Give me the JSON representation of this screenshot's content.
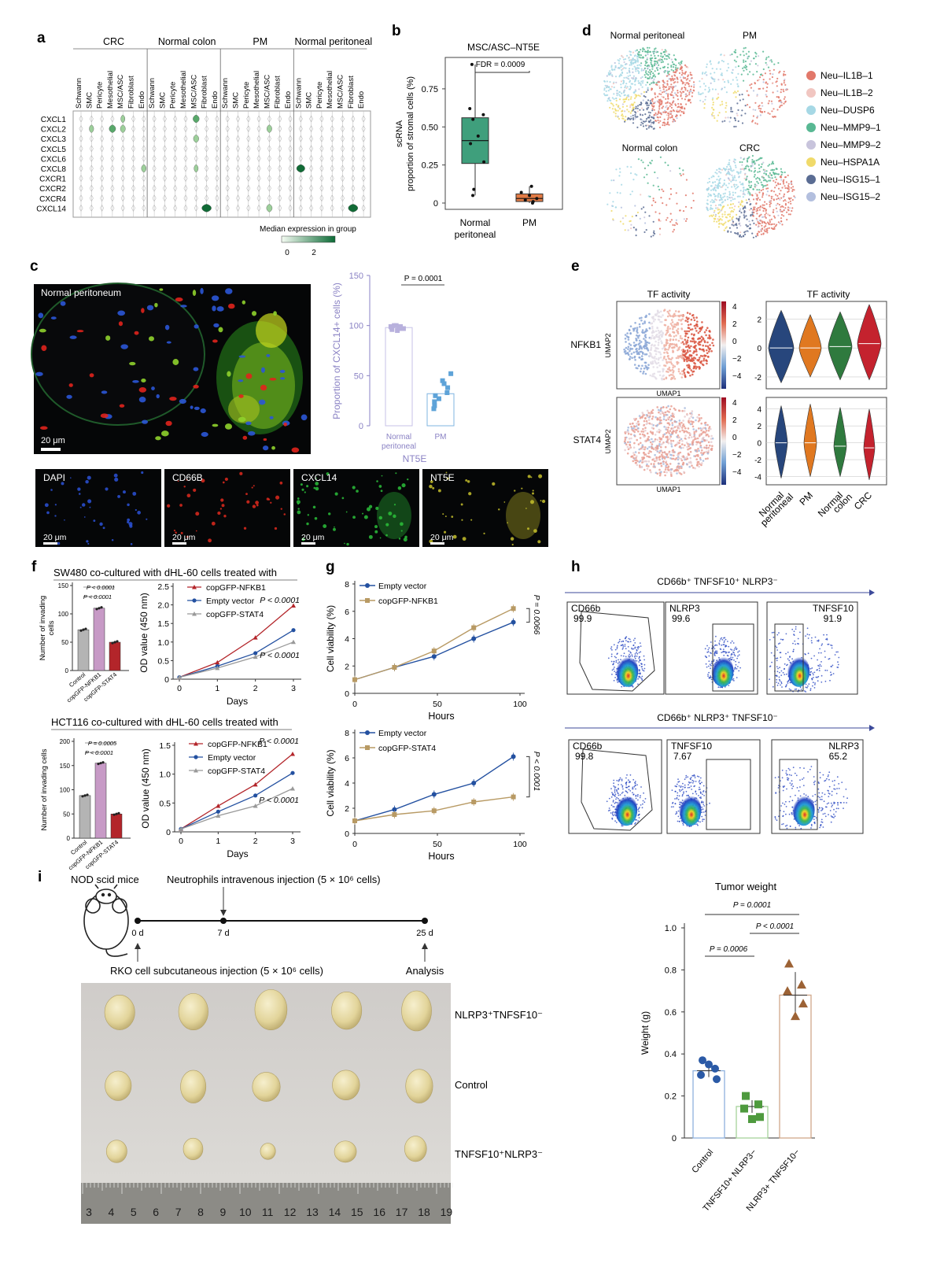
{
  "panels": {
    "a": "a",
    "b": "b",
    "c": "c",
    "d": "d",
    "e": "e",
    "f": "f",
    "g": "g",
    "h": "h",
    "i": "i"
  },
  "chart_data": [
    {
      "id": "a",
      "type": "violin-matrix",
      "groups": [
        "CRC",
        "Normal colon",
        "PM",
        "Normal peritoneal"
      ],
      "cell_types": [
        "Schwann",
        "SMC",
        "Pericyte",
        "Mesothelial",
        "MSC/ASC",
        "Fibroblast",
        "Endo"
      ],
      "genes": [
        "CXCL1",
        "CXCL2",
        "CXCL3",
        "CXCL5",
        "CXCL6",
        "CXCL8",
        "CXCR1",
        "CXCR2",
        "CXCR4",
        "CXCL14"
      ],
      "highlighted": [
        {
          "gene": "CXCL2",
          "group": 0,
          "cell": 3,
          "level": 1.4
        },
        {
          "gene": "CXCL2",
          "group": 0,
          "cell": 4,
          "level": 0.9
        },
        {
          "gene": "CXCL2",
          "group": 0,
          "cell": 1,
          "level": 0.7
        },
        {
          "gene": "CXCL1",
          "group": 0,
          "cell": 4,
          "level": 0.6
        },
        {
          "gene": "CXCL8",
          "group": 0,
          "cell": 6,
          "level": 0.8
        },
        {
          "gene": "CXCL1",
          "group": 1,
          "cell": 4,
          "level": 1.3
        },
        {
          "gene": "CXCL3",
          "group": 1,
          "cell": 4,
          "level": 1.0
        },
        {
          "gene": "CXCL8",
          "group": 1,
          "cell": 4,
          "level": 0.6
        },
        {
          "gene": "CXCL14",
          "group": 1,
          "cell": 5,
          "level": 2.4
        },
        {
          "gene": "CXCL2",
          "group": 2,
          "cell": 4,
          "level": 0.9
        },
        {
          "gene": "CXCL14",
          "group": 2,
          "cell": 4,
          "level": 1.1
        },
        {
          "gene": "CXCL8",
          "group": 3,
          "cell": 0,
          "level": 2.0
        },
        {
          "gene": "CXCL14",
          "group": 3,
          "cell": 5,
          "level": 2.4
        }
      ],
      "colorbar": {
        "label": "Median expression in group",
        "ticks": [
          "0",
          "2"
        ]
      }
    },
    {
      "id": "b",
      "type": "box",
      "title": "MSC/ASC–NT5E",
      "ylabel": "scRNA\nproportion of stromal cells (%)",
      "yticks": [
        "0",
        "0.25",
        "0.50",
        "0.75"
      ],
      "ylim": [
        0,
        0.92
      ],
      "categories": [
        "Normal\nperitoneal",
        "PM"
      ],
      "boxes": [
        {
          "q1": 0.26,
          "median": 0.41,
          "q3": 0.56,
          "whisker_low": 0.05,
          "whisker_high": 0.91,
          "points": [
            0.91,
            0.62,
            0.58,
            0.55,
            0.44,
            0.39,
            0.27,
            0.09,
            0.05
          ]
        },
        {
          "q1": 0.01,
          "median": 0.03,
          "q3": 0.06,
          "whisker_low": 0.0,
          "whisker_high": 0.11,
          "points": [
            0.11,
            0.07,
            0.05,
            0.03,
            0.02,
            0.01,
            0.0
          ]
        }
      ],
      "annotation": "FDR = 0.0009"
    },
    {
      "id": "c",
      "type": "bar-dot",
      "ylabel": "Proportion of CXCL14+ cells (%)",
      "xlabel": "NT5E",
      "yticks": [
        "0",
        "50",
        "100",
        "150"
      ],
      "ylim": [
        0,
        150
      ],
      "categories": [
        "Normal\nperitoneal",
        "PM"
      ],
      "values": [
        98,
        32
      ],
      "points": [
        [
          100,
          100,
          99,
          98,
          97,
          96,
          95,
          98,
          99,
          97
        ],
        [
          52,
          45,
          42,
          38,
          33,
          30,
          27,
          24,
          20,
          17
        ]
      ],
      "annotation": "P = 0.0001"
    },
    {
      "id": "e",
      "type": "violin",
      "title": "TF activity",
      "rows": [
        "NFKB1",
        "STAT4"
      ],
      "categories": [
        "Normal\nperitoneal",
        "PM",
        "Normal\ncolon",
        "CRC"
      ],
      "colors": [
        "#27467c",
        "#e07820",
        "#2f7a3e",
        "#c4222e"
      ],
      "nfkb1": {
        "yticks": [
          "-2",
          "0",
          "2"
        ],
        "ylim": [
          -2.6,
          3.0
        ],
        "median": [
          0.0,
          0.0,
          0.1,
          0.3
        ]
      },
      "stat4": {
        "yticks": [
          "-4",
          "-2",
          "0",
          "2",
          "4"
        ],
        "ylim": [
          -4.6,
          5.0
        ],
        "median": [
          0.0,
          0.0,
          -0.4,
          -0.6
        ]
      }
    },
    {
      "id": "f-bar-1",
      "type": "bar",
      "ylabel": "Number of invading\ncells",
      "yticks": [
        "0",
        "50",
        "100",
        "150"
      ],
      "ylim": [
        0,
        150
      ],
      "categories": [
        "Control",
        "copGFP-NFKB1",
        "copGFP-STAT4"
      ],
      "values": [
        72,
        110,
        50
      ],
      "annotations": [
        "P < 0.0001",
        "P < 0.0001"
      ]
    },
    {
      "id": "f-line-1",
      "type": "line",
      "title": "SW480 co-cultured with dHL-60 cells treated with",
      "xlabel": "Days",
      "ylabel": "OD value (450 nm)",
      "x": [
        0,
        1,
        2,
        3
      ],
      "yticks": [
        "0",
        "0.5",
        "1.0",
        "1.5",
        "2.0",
        "2.5"
      ],
      "ylim": [
        0,
        2.5
      ],
      "series": [
        {
          "name": "copGFP-NFKB1",
          "values": [
            0.05,
            0.45,
            1.12,
            1.98
          ]
        },
        {
          "name": "Empty vector",
          "values": [
            0.05,
            0.35,
            0.7,
            1.32
          ]
        },
        {
          "name": "copGFP-STAT4",
          "values": [
            0.05,
            0.3,
            0.6,
            1.0
          ]
        }
      ],
      "annotations": [
        "P < 0.0001",
        "P < 0.0001"
      ]
    },
    {
      "id": "f-bar-2",
      "type": "bar",
      "ylabel": "Number of invading cells",
      "yticks": [
        "0",
        "50",
        "100",
        "150",
        "200"
      ],
      "ylim": [
        0,
        200
      ],
      "categories": [
        "Control",
        "copGFP-NFKB1",
        "copGFP-STAT4"
      ],
      "values": [
        88,
        155,
        50
      ],
      "annotations": [
        "P = 0.0005",
        "P < 0.0001"
      ]
    },
    {
      "id": "f-line-2",
      "type": "line",
      "title": "HCT116 co-cultured with dHL-60 cells treated with",
      "xlabel": "Days",
      "ylabel": "OD value (450 nm)",
      "x": [
        0,
        1,
        2,
        3
      ],
      "yticks": [
        "0",
        "0.5",
        "1.0",
        "1.5"
      ],
      "ylim": [
        0,
        1.5
      ],
      "series": [
        {
          "name": "copGFP-NFKB1",
          "values": [
            0.05,
            0.45,
            0.82,
            1.35
          ]
        },
        {
          "name": "Empty vector",
          "values": [
            0.05,
            0.35,
            0.63,
            1.02
          ]
        },
        {
          "name": "copGFP-STAT4",
          "values": [
            0.05,
            0.28,
            0.45,
            0.75
          ]
        }
      ],
      "annotations": [
        "P < 0.0001",
        "P < 0.0001"
      ]
    },
    {
      "id": "g-1",
      "type": "line",
      "xlabel": "Hours",
      "ylabel": "Cell viability (%)",
      "x": [
        0,
        24,
        48,
        72,
        96
      ],
      "xticks": [
        "0",
        "50",
        "100"
      ],
      "xlim": [
        0,
        100
      ],
      "yticks": [
        "0",
        "2",
        "4",
        "6",
        "8"
      ],
      "ylim": [
        0,
        8
      ],
      "series": [
        {
          "name": "Empty vector",
          "values": [
            1.0,
            1.9,
            2.7,
            4.0,
            5.2
          ]
        },
        {
          "name": "copGFP-NFKB1",
          "values": [
            1.0,
            1.9,
            3.1,
            4.8,
            6.2
          ]
        }
      ],
      "annotation": "P = 0.0066"
    },
    {
      "id": "g-2",
      "type": "line",
      "xlabel": "Hours",
      "ylabel": "Cell viability (%)",
      "x": [
        0,
        24,
        48,
        72,
        96
      ],
      "xticks": [
        "0",
        "50",
        "100"
      ],
      "xlim": [
        0,
        100
      ],
      "yticks": [
        "0",
        "2",
        "4",
        "6",
        "8"
      ],
      "ylim": [
        0,
        8
      ],
      "series": [
        {
          "name": "Empty vector",
          "values": [
            1.0,
            1.9,
            3.1,
            4.0,
            6.1
          ]
        },
        {
          "name": "copGFP-STAT4",
          "values": [
            1.0,
            1.5,
            1.8,
            2.5,
            2.9
          ]
        }
      ],
      "annotation": "P < 0.0001"
    },
    {
      "id": "i-weight",
      "type": "bar-dot",
      "title": "Tumor weight",
      "ylabel": "Weight (g)",
      "yticks": [
        "0",
        "0.2",
        "0.4",
        "0.6",
        "0.8",
        "1.0"
      ],
      "ylim": [
        0,
        1.0
      ],
      "categories": [
        "Control",
        "TNFSF10+ NLRP3−",
        "NLRP3+ TNFSF10−"
      ],
      "values": [
        0.32,
        0.15,
        0.68
      ],
      "points": [
        [
          0.37,
          0.33,
          0.3,
          0.28,
          0.35
        ],
        [
          0.2,
          0.16,
          0.14,
          0.1,
          0.09
        ],
        [
          0.83,
          0.73,
          0.7,
          0.64,
          0.58
        ]
      ],
      "annotations": [
        "P = 0.0001",
        "P < 0.0001",
        "P = 0.0006"
      ]
    }
  ],
  "d": {
    "plots": [
      "Normal peritoneal",
      "PM",
      "Normal colon",
      "CRC"
    ],
    "legend": [
      {
        "name": "Neu–IL1B–1",
        "color": "#e2786a"
      },
      {
        "name": "Neu–IL1B–2",
        "color": "#f1c6c1"
      },
      {
        "name": "Neu–DUSP6",
        "color": "#a6d8e5"
      },
      {
        "name": "Neu–MMP9–1",
        "color": "#58b893"
      },
      {
        "name": "Neu–MMP9–2",
        "color": "#c8c4dc"
      },
      {
        "name": "Neu–HSPA1A",
        "color": "#f0da6a"
      },
      {
        "name": "Neu–ISG15–1",
        "color": "#5a6c93"
      },
      {
        "name": "Neu–ISG15–2",
        "color": "#b3bfde"
      }
    ]
  },
  "c_images": {
    "main_label": "Normal peritoneum",
    "scale": "20 μm",
    "tiles": [
      "DAPI",
      "CD66B",
      "CXCL14",
      "NT5E"
    ]
  },
  "e_umap": {
    "title": "TF activity",
    "axis_x": "UMAP1",
    "axis_y": "UMAP2",
    "cbar_top": [
      "4",
      "2",
      "0",
      "−2",
      "−4"
    ],
    "cbar_bottom": [
      "4",
      "2",
      "0",
      "−2",
      "−4"
    ]
  },
  "f_legend": [
    "copGFP-NFKB1",
    "Empty vector",
    "copGFP-STAT4"
  ],
  "h": {
    "row1_title": "CD66b⁺ TNFSF10⁺ NLRP3⁻",
    "row2_title": "CD66b⁺ NLRP3⁺ TNFSF10⁻",
    "row1": [
      {
        "name": "CD66b",
        "value": "99.9"
      },
      {
        "name": "NLRP3",
        "value": "99.6"
      },
      {
        "name": "TNFSF10",
        "value": "91.9"
      }
    ],
    "row2": [
      {
        "name": "CD66b",
        "value": "99.8"
      },
      {
        "name": "TNFSF10",
        "value": "7.67"
      },
      {
        "name": "NLRP3",
        "value": "65.2"
      }
    ]
  },
  "i": {
    "mice": "NOD scid mice",
    "injection_top": "Neutrophils intravenous injection (5 × 10⁶ cells)",
    "injection_bottom": "RKO cell subcutaneous injection (5 × 10⁶ cells)",
    "days": [
      "0 d",
      "7 d",
      "25 d"
    ],
    "analysis": "Analysis",
    "row_labels": [
      "NLRP3⁺TNFSF10⁻",
      "Control",
      "TNFSF10⁺NLRP3⁻"
    ],
    "ruler": [
      "3",
      "4",
      "5",
      "6",
      "7",
      "8",
      "9",
      "10",
      "11",
      "12",
      "13",
      "14",
      "15",
      "16",
      "17",
      "18",
      "19"
    ]
  }
}
